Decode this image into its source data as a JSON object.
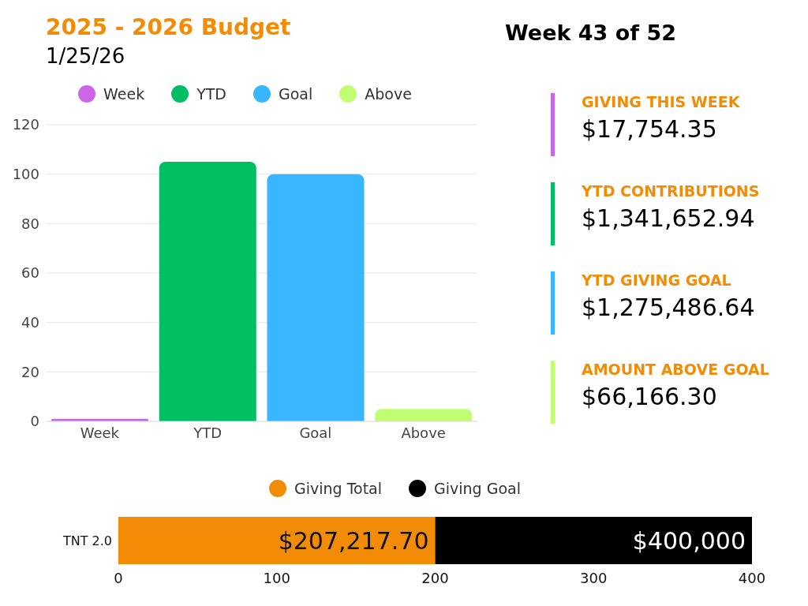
{
  "chart_data": [
    {
      "type": "bar",
      "title": "2025 - 2026 Budget",
      "subtitle": "1/25/26",
      "categories": [
        "Week",
        "YTD",
        "Goal",
        "Above"
      ],
      "stacked": true,
      "series": [
        {
          "name": "Week",
          "color": "#cc66e6",
          "values": [
            1,
            null,
            null,
            null
          ]
        },
        {
          "name": "YTD",
          "color": "#00bf63",
          "values": [
            null,
            105,
            null,
            null
          ]
        },
        {
          "name": "Goal",
          "color": "#38b6ff",
          "values": [
            null,
            null,
            100,
            null
          ]
        },
        {
          "name": "Above",
          "color": "#c1ff72",
          "values": [
            null,
            null,
            null,
            5
          ]
        }
      ],
      "ylim": [
        0,
        120
      ],
      "yticks": [
        0,
        20,
        40,
        60,
        80,
        100,
        120
      ],
      "grid": "y",
      "legend": "top"
    },
    {
      "type": "other",
      "title": "Week 43 of 52",
      "categories": [
        "GIVING THIS WEEK",
        "YTD CONTRIBUTIONS",
        "YTD GIVING GOAL",
        "AMOUNT ABOVE GOAL"
      ],
      "value_labels": [
        "$17,754.35",
        "$1,341,652.94",
        "$1,275,486.64",
        "$66,166.30"
      ],
      "colors": [
        "#cc66e6",
        "#00bf63",
        "#38b6ff",
        "#c1ff72"
      ]
    },
    {
      "type": "bar",
      "orientation": "horizontal",
      "stacked": true,
      "categories": [
        "TNT 2.0"
      ],
      "series": [
        {
          "name": "Giving Total",
          "color": "#f28c06",
          "values": [
            200
          ]
        },
        {
          "name": "Giving Goal",
          "color": "#000000",
          "values": [
            200
          ]
        }
      ],
      "annotations": [
        {
          "text": "$207,217.70",
          "x": 200
        },
        {
          "text": "$400,000",
          "x": 400
        }
      ],
      "xlim": [
        0,
        400
      ],
      "xticks": [
        0,
        100,
        200,
        300,
        400
      ],
      "grid": false,
      "legend": "top"
    }
  ]
}
